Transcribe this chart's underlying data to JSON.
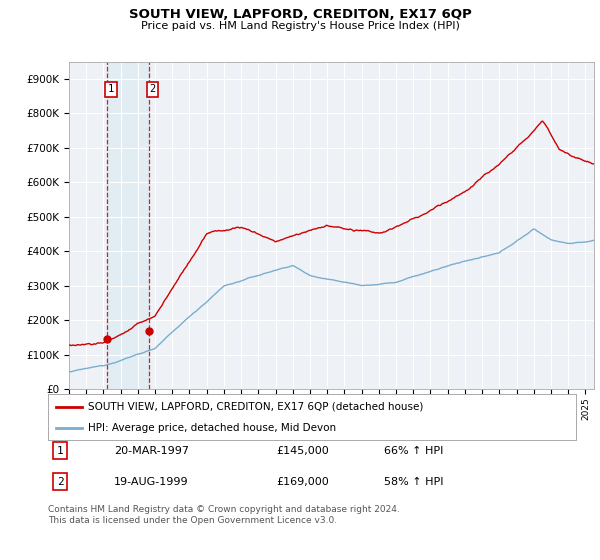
{
  "title": "SOUTH VIEW, LAPFORD, CREDITON, EX17 6QP",
  "subtitle": "Price paid vs. HM Land Registry's House Price Index (HPI)",
  "legend_line1": "SOUTH VIEW, LAPFORD, CREDITON, EX17 6QP (detached house)",
  "legend_line2": "HPI: Average price, detached house, Mid Devon",
  "footnote": "Contains HM Land Registry data © Crown copyright and database right 2024.\nThis data is licensed under the Open Government Licence v3.0.",
  "sale_color": "#cc0000",
  "hpi_color": "#7aadce",
  "marker1_price": 145000,
  "marker2_price": 169000,
  "table": [
    [
      "1",
      "20-MAR-1997",
      "£145,000",
      "66% ↑ HPI"
    ],
    [
      "2",
      "19-AUG-1999",
      "£169,000",
      "58% ↑ HPI"
    ]
  ],
  "ylim": [
    0,
    950000
  ],
  "yticks": [
    0,
    100000,
    200000,
    300000,
    400000,
    500000,
    600000,
    700000,
    800000,
    900000
  ],
  "ytick_labels": [
    "£0",
    "£100K",
    "£200K",
    "£300K",
    "£400K",
    "£500K",
    "£600K",
    "£700K",
    "£800K",
    "£900K"
  ],
  "background_color": "#eef2f7",
  "grid_color": "#ffffff",
  "sale1_year": 1997.22,
  "sale2_year": 1999.63,
  "xmin": 1995.0,
  "xmax": 2025.5
}
